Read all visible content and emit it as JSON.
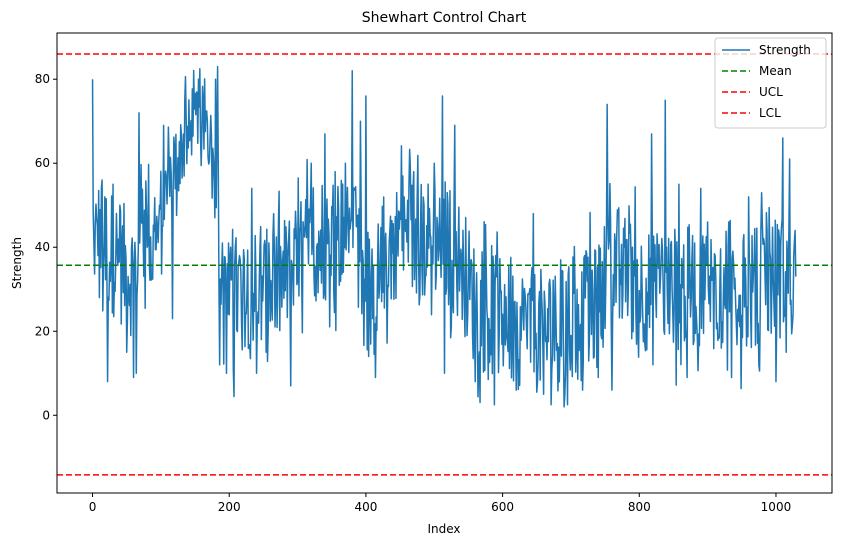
{
  "chart_data": {
    "type": "line",
    "title": "Shewhart Control Chart",
    "xlabel": "Index",
    "ylabel": "Strength",
    "xlim": [
      -52,
      1082
    ],
    "ylim": [
      -18.5,
      91
    ],
    "x_ticks": [
      0,
      200,
      400,
      600,
      800,
      1000
    ],
    "y_ticks": [
      0,
      20,
      40,
      60,
      80
    ],
    "grid": false,
    "legend_placement": "top-right",
    "series": [
      {
        "name": "Strength",
        "color": "#1f77b4",
        "n_points": 1030,
        "segment_levels": [
          [
            0,
            44
          ],
          [
            60,
            33
          ],
          [
            70,
            46
          ],
          [
            90,
            38
          ],
          [
            110,
            55
          ],
          [
            130,
            64
          ],
          [
            150,
            67
          ],
          [
            170,
            70
          ],
          [
            185,
            44
          ],
          [
            190,
            26
          ],
          [
            230,
            31
          ],
          [
            260,
            29
          ],
          [
            300,
            36
          ],
          [
            330,
            41
          ],
          [
            360,
            44
          ],
          [
            390,
            40
          ],
          [
            405,
            23
          ],
          [
            415,
            30
          ],
          [
            425,
            38
          ],
          [
            450,
            44
          ],
          [
            480,
            41
          ],
          [
            510,
            43
          ],
          [
            540,
            36
          ],
          [
            560,
            26
          ],
          [
            600,
            22
          ],
          [
            650,
            20
          ],
          [
            700,
            21
          ],
          [
            740,
            26
          ],
          [
            760,
            37
          ],
          [
            800,
            30
          ],
          [
            850,
            30
          ],
          [
            900,
            31
          ],
          [
            950,
            28
          ],
          [
            1000,
            33
          ],
          [
            1030,
            33
          ]
        ],
        "spikes": [
          [
            0,
            80
          ],
          [
            2,
            41
          ],
          [
            4,
            46
          ],
          [
            6,
            47
          ],
          [
            8,
            38
          ],
          [
            10,
            28
          ],
          [
            14,
            56
          ],
          [
            18,
            52
          ],
          [
            22,
            8
          ],
          [
            30,
            55
          ],
          [
            40,
            50
          ],
          [
            50,
            15
          ],
          [
            60,
            9
          ],
          [
            64,
            10
          ],
          [
            68,
            72
          ],
          [
            80,
            40
          ],
          [
            98,
            50
          ],
          [
            117,
            23
          ],
          [
            135,
            75
          ],
          [
            155,
            80
          ],
          [
            168,
            70
          ],
          [
            180,
            80
          ],
          [
            183,
            83
          ],
          [
            186,
            12
          ],
          [
            190,
            41
          ],
          [
            196,
            10
          ],
          [
            215,
            38
          ],
          [
            233,
            54
          ],
          [
            240,
            10
          ],
          [
            265,
            48
          ],
          [
            290,
            7
          ],
          [
            320,
            60
          ],
          [
            340,
            67
          ],
          [
            355,
            58
          ],
          [
            370,
            60
          ],
          [
            380,
            82
          ],
          [
            392,
            70
          ],
          [
            400,
            76
          ],
          [
            404,
            14
          ],
          [
            410,
            23
          ],
          [
            414,
            9
          ],
          [
            445,
            53
          ],
          [
            470,
            58
          ],
          [
            500,
            60
          ],
          [
            512,
            76
          ],
          [
            515,
            10
          ],
          [
            530,
            69
          ],
          [
            560,
            8
          ],
          [
            590,
            38
          ],
          [
            620,
            6
          ],
          [
            645,
            48
          ],
          [
            660,
            5
          ],
          [
            685,
            37
          ],
          [
            690,
            2
          ],
          [
            720,
            38
          ],
          [
            740,
            9
          ],
          [
            753,
            74
          ],
          [
            760,
            6
          ],
          [
            790,
            40
          ],
          [
            818,
            67
          ],
          [
            820,
            12
          ],
          [
            838,
            75
          ],
          [
            858,
            55
          ],
          [
            870,
            9
          ],
          [
            890,
            54
          ],
          [
            900,
            46
          ],
          [
            920,
            16
          ],
          [
            935,
            9
          ],
          [
            953,
            43
          ],
          [
            960,
            52
          ],
          [
            975,
            12
          ],
          [
            980,
            46
          ],
          [
            1000,
            8
          ],
          [
            1010,
            66
          ],
          [
            1015,
            15
          ],
          [
            1020,
            61
          ],
          [
            1025,
            24
          ],
          [
            1028,
            44
          ],
          [
            1029,
            33
          ]
        ]
      },
      {
        "name": "Mean",
        "color": "#008000",
        "y": 35.7,
        "dashed": true
      },
      {
        "name": "UCL",
        "color": "#ff0000",
        "y": 86,
        "dashed": true
      },
      {
        "name": "LCL",
        "color": "#ff0000",
        "y": -14.2,
        "dashed": true
      }
    ]
  }
}
